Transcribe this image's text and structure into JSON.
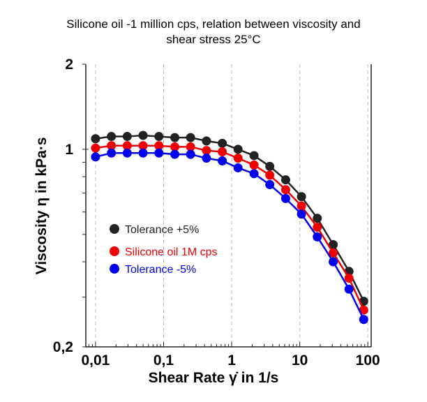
{
  "chart_data": {
    "type": "line",
    "title": [
      "Silicone oil -1 million cps, relation between viscosity and",
      "shear stress 25°C"
    ],
    "xlabel": "Shear Rate γ̇ in 1/s",
    "ylabel": "Viscosity η in kPa·s",
    "xscale": "log",
    "yscale": "log",
    "xlim": [
      0.0072,
      112
    ],
    "ylim": [
      0.2,
      2
    ],
    "x_ticks": [
      0.01,
      0.1,
      1,
      10,
      100
    ],
    "x_tick_labels": [
      "0,01",
      "0,1",
      "1",
      "10",
      "100"
    ],
    "y_ticks": [
      2,
      1,
      0.2
    ],
    "y_tick_labels": [
      "2",
      "1",
      "0,2"
    ],
    "grid": "vertical dashed at decades",
    "legend_position": "center-left",
    "x": [
      0.01,
      0.0171,
      0.0292,
      0.0499,
      0.0853,
      0.146,
      0.249,
      0.426,
      0.728,
      1.24,
      2.13,
      3.63,
      6.21,
      10.6,
      18.1,
      31.0,
      52.9,
      87.0
    ],
    "series": [
      {
        "name": "Tolerance +5%",
        "color": "#222222",
        "values": [
          1.09,
          1.11,
          1.11,
          1.12,
          1.11,
          1.1,
          1.1,
          1.07,
          1.05,
          1.0,
          0.95,
          0.87,
          0.78,
          0.68,
          0.57,
          0.46,
          0.37,
          0.29
        ]
      },
      {
        "name": "Silicone oil 1M cps",
        "color": "#ee0000",
        "values": [
          1.01,
          1.03,
          1.03,
          1.03,
          1.03,
          1.02,
          1.02,
          0.99,
          0.98,
          0.93,
          0.88,
          0.81,
          0.72,
          0.63,
          0.53,
          0.43,
          0.35,
          0.27
        ]
      },
      {
        "name": "Tolerance -5%",
        "color": "#0000ee",
        "values": [
          0.94,
          0.97,
          0.97,
          0.97,
          0.97,
          0.96,
          0.96,
          0.93,
          0.91,
          0.86,
          0.82,
          0.75,
          0.67,
          0.59,
          0.49,
          0.4,
          0.32,
          0.25
        ]
      }
    ]
  }
}
